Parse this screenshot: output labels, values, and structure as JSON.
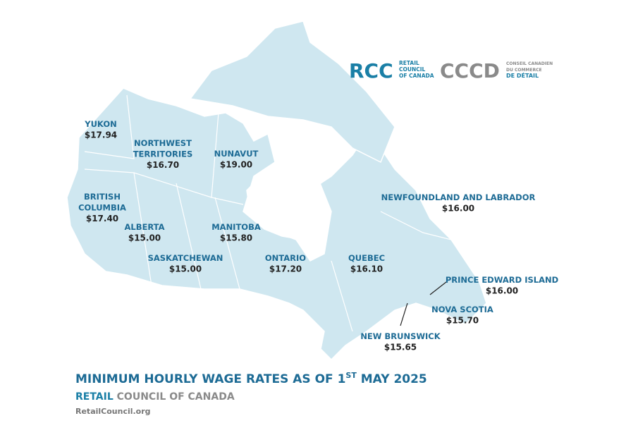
{
  "logo": {
    "rcc": "RCC",
    "rcc_lines": [
      "RETAIL",
      "COUNCIL",
      "OF CANADA"
    ],
    "cccd": "CCCD",
    "cccd_lines": [
      "CONSEIL CANADIEN",
      "DU COMMERCE",
      "DE DÉTAIL"
    ]
  },
  "regions": [
    {
      "name_lines": [
        "YUKON"
      ],
      "wage": "$17.94"
    },
    {
      "name_lines": [
        "NORTHWEST",
        "TERRITORIES"
      ],
      "wage": "$16.70"
    },
    {
      "name_lines": [
        "NUNAVUT"
      ],
      "wage": "$19.00"
    },
    {
      "name_lines": [
        "BRITISH",
        "COLUMBIA"
      ],
      "wage": "$17.40"
    },
    {
      "name_lines": [
        "ALBERTA"
      ],
      "wage": "$15.00"
    },
    {
      "name_lines": [
        "MANITOBA"
      ],
      "wage": "$15.80"
    },
    {
      "name_lines": [
        "SASKATCHEWAN"
      ],
      "wage": "$15.00"
    },
    {
      "name_lines": [
        "ONTARIO"
      ],
      "wage": "$17.20"
    },
    {
      "name_lines": [
        "QUEBEC"
      ],
      "wage": "$16.10"
    },
    {
      "name_lines": [
        "NEWFOUNDLAND AND LABRADOR"
      ],
      "wage": "$16.00"
    },
    {
      "name_lines": [
        "PRINCE EDWARD ISLAND"
      ],
      "wage": "$16.00"
    },
    {
      "name_lines": [
        "NOVA SCOTIA"
      ],
      "wage": "$15.70"
    },
    {
      "name_lines": [
        "NEW BRUNSWICK"
      ],
      "wage": "$15.65"
    }
  ],
  "title": {
    "main": "MINIMUM HOURLY WAGE RATES AS OF 1",
    "superscript": "ST",
    "rest": " MAY 2025"
  },
  "footer": {
    "brand_strong": "RETAIL",
    "brand_rest": " COUNCIL OF CANADA",
    "website": "RetailCouncil.org"
  }
}
